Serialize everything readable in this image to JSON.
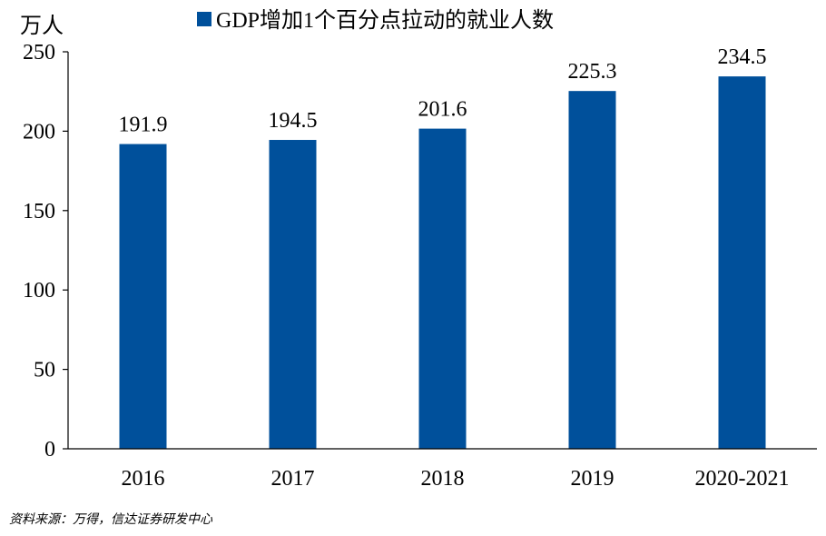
{
  "chart_data": {
    "type": "bar",
    "categories": [
      "2016",
      "2017",
      "2018",
      "2019",
      "2020-2021"
    ],
    "series": [
      {
        "name": "GDP增加1个百分点拉动的就业人数",
        "values": [
          191.9,
          194.5,
          201.6,
          225.3,
          234.5
        ],
        "color": "#00509B"
      }
    ],
    "data_labels": [
      "191.9",
      "194.5",
      "201.6",
      "225.3",
      "234.5"
    ],
    "ylabel": "万人",
    "ylim": [
      0,
      250
    ],
    "yticks": [
      0,
      50,
      100,
      150,
      200,
      250
    ],
    "legend_position": "top",
    "grid": false
  },
  "source_text": "资料来源：万得，信达证券研发中心"
}
